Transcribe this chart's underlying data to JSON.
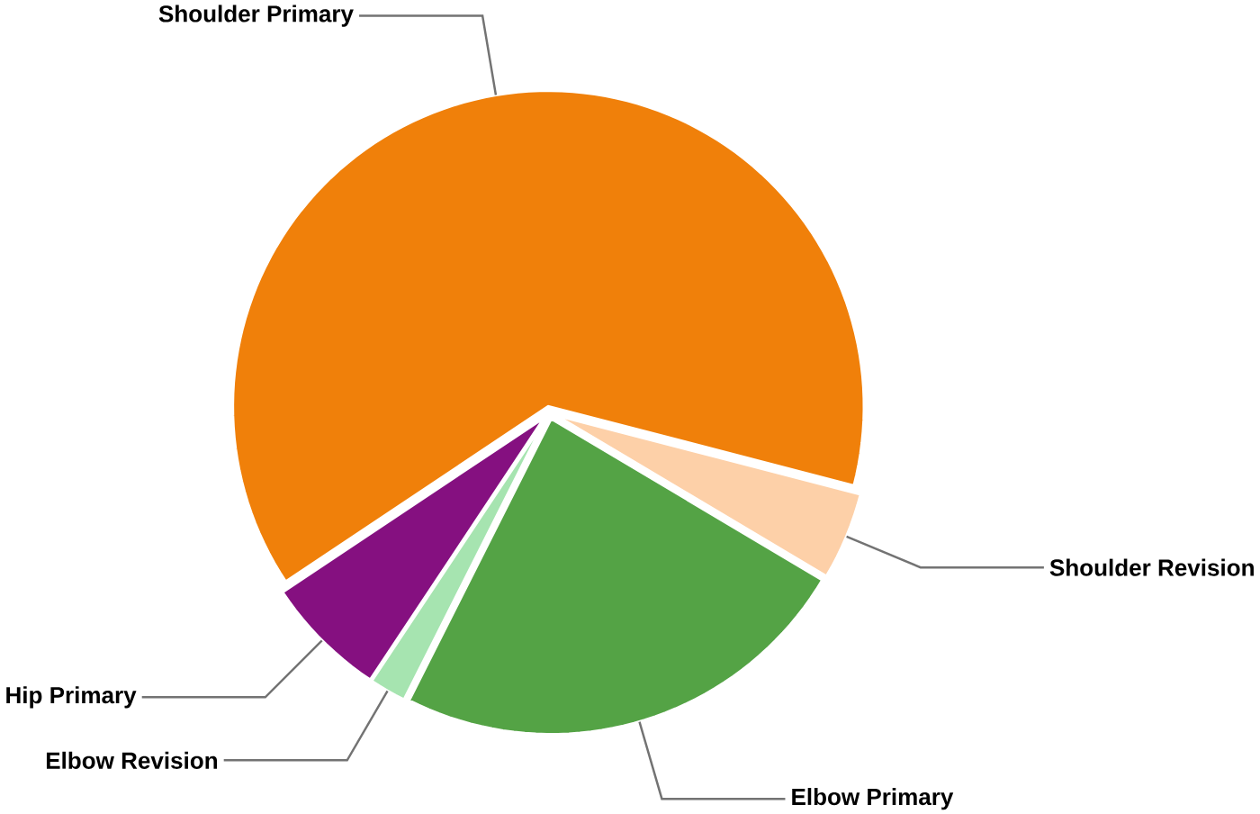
{
  "chart_data": {
    "type": "pie",
    "categories": [
      "Shoulder Primary",
      "Shoulder Revision",
      "Elbow Primary",
      "Elbow Revision",
      "Hip Primary"
    ],
    "values": [
      63.4,
      4.5,
      23.9,
      1.9,
      6.3
    ],
    "colors": [
      "#f0800a",
      "#fdd0a8",
      "#54a345",
      "#a6e4b0",
      "#851080"
    ]
  }
}
